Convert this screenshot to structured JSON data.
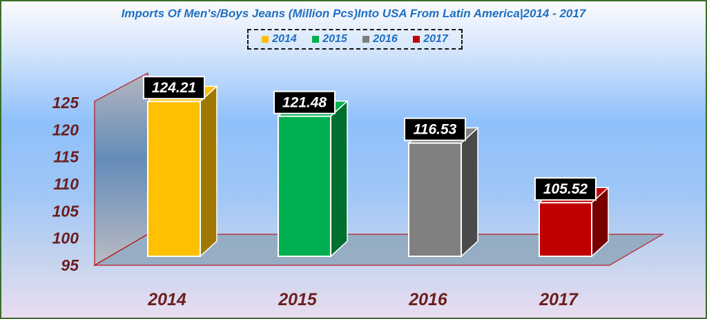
{
  "title": "Imports Of Men's/Boys Jeans (Million Pcs)Into USA From Latin America|2014 - 2017",
  "chart_data": {
    "type": "bar",
    "title": "Imports Of Men's/Boys Jeans (Million Pcs)Into USA From Latin America|2014 - 2017",
    "categories": [
      "2014",
      "2015",
      "2016",
      "2017"
    ],
    "values": [
      124.21,
      121.48,
      116.53,
      105.52
    ],
    "data_labels": [
      "124.21",
      "121.48",
      "116.53",
      "105.52"
    ],
    "colors": [
      "#ffc000",
      "#00b050",
      "#808080",
      "#c00000"
    ],
    "side_colors": [
      "#a07800",
      "#007030",
      "#4a4a4a",
      "#7a0000"
    ],
    "ylim": [
      95,
      125
    ],
    "yticks": [
      95,
      100,
      105,
      110,
      115,
      120,
      125
    ],
    "ytick_labels": [
      "95",
      "100",
      "105",
      "110",
      "115",
      "120",
      "125"
    ],
    "xlabel": "",
    "ylabel": "",
    "legend": {
      "placement": "top-center",
      "entries": [
        "2014",
        "2015",
        "2016",
        "2017"
      ]
    },
    "grid": false
  }
}
